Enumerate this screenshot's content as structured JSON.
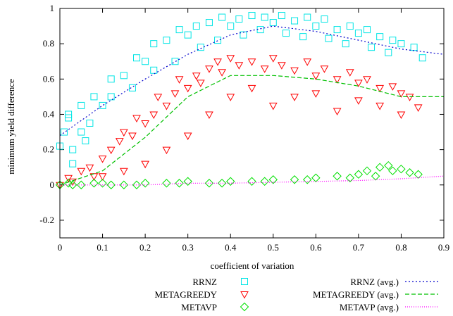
{
  "chart_data": {
    "type": "scatter",
    "title": "",
    "xlabel": "coefficient of variation",
    "ylabel": "minimum yield difference",
    "xlim": [
      0,
      0.9
    ],
    "ylim": [
      -0.3,
      1.0
    ],
    "x_ticks": [
      0,
      0.1,
      0.2,
      0.3,
      0.4,
      0.5,
      0.6,
      0.7,
      0.8,
      0.9
    ],
    "x_tick_labels": [
      "0",
      "0.1",
      "0.2",
      "0.3",
      "0.4",
      "0.5",
      "0.6",
      "0.7",
      "0.8",
      "0.9"
    ],
    "y_ticks": [
      -0.2,
      0,
      0.2,
      0.4,
      0.6,
      0.8,
      1.0
    ],
    "y_tick_labels": [
      "-0.2",
      "0",
      "0.2",
      "0.4",
      "0.6",
      "0.8",
      "1"
    ],
    "grid": false,
    "legend_position": "bottom",
    "scatter_series": [
      {
        "name": "RRNZ",
        "marker": "square",
        "color": "#00e5e5",
        "x": [
          0,
          0.01,
          0.02,
          0.03,
          0.05,
          0.05,
          0.08,
          0.1,
          0.12,
          0.15,
          0.18,
          0.2,
          0.22,
          0.25,
          0.28,
          0.3,
          0.32,
          0.35,
          0.38,
          0.4,
          0.42,
          0.45,
          0.48,
          0.5,
          0.52,
          0.55,
          0.58,
          0.6,
          0.62,
          0.65,
          0.68,
          0.7,
          0.72,
          0.75,
          0.78,
          0.8,
          0.83,
          0.85,
          0.03,
          0.07,
          0.12,
          0.17,
          0.22,
          0.27,
          0.33,
          0.37,
          0.43,
          0.47,
          0.53,
          0.57,
          0.63,
          0.67,
          0.73,
          0.77,
          0.02,
          0.06
        ],
        "y": [
          0.22,
          0.3,
          0.38,
          0.2,
          0.45,
          0.3,
          0.5,
          0.45,
          0.6,
          0.62,
          0.72,
          0.7,
          0.8,
          0.82,
          0.88,
          0.85,
          0.9,
          0.92,
          0.95,
          0.9,
          0.94,
          0.96,
          0.95,
          0.92,
          0.96,
          0.93,
          0.95,
          0.9,
          0.94,
          0.88,
          0.9,
          0.86,
          0.88,
          0.84,
          0.82,
          0.8,
          0.78,
          0.72,
          0.12,
          0.35,
          0.5,
          0.55,
          0.65,
          0.7,
          0.78,
          0.82,
          0.85,
          0.88,
          0.86,
          0.84,
          0.83,
          0.8,
          0.78,
          0.75,
          0.4,
          0.25
        ]
      },
      {
        "name": "METAGREEDY",
        "marker": "triangle-down",
        "color": "#ff0000",
        "x": [
          0,
          0.02,
          0.03,
          0.05,
          0.07,
          0.08,
          0.1,
          0.12,
          0.14,
          0.15,
          0.17,
          0.18,
          0.2,
          0.22,
          0.23,
          0.25,
          0.27,
          0.28,
          0.3,
          0.32,
          0.33,
          0.35,
          0.37,
          0.38,
          0.4,
          0.42,
          0.45,
          0.48,
          0.5,
          0.52,
          0.55,
          0.58,
          0.6,
          0.62,
          0.65,
          0.68,
          0.7,
          0.72,
          0.75,
          0.78,
          0.8,
          0.82,
          0.84,
          0.25,
          0.3,
          0.35,
          0.4,
          0.45,
          0.5,
          0.55,
          0.6,
          0.65,
          0.7,
          0.75,
          0.8,
          0.2,
          0.15,
          0.1
        ],
        "y": [
          0.0,
          0.04,
          0.02,
          0.08,
          0.1,
          0.05,
          0.15,
          0.2,
          0.25,
          0.3,
          0.28,
          0.38,
          0.35,
          0.4,
          0.5,
          0.45,
          0.52,
          0.6,
          0.55,
          0.62,
          0.58,
          0.66,
          0.7,
          0.64,
          0.72,
          0.68,
          0.7,
          0.66,
          0.72,
          0.68,
          0.65,
          0.7,
          0.62,
          0.66,
          0.6,
          0.64,
          0.58,
          0.6,
          0.55,
          0.56,
          0.52,
          0.5,
          0.44,
          0.2,
          0.28,
          0.4,
          0.5,
          0.55,
          0.45,
          0.5,
          0.52,
          0.42,
          0.48,
          0.45,
          0.4,
          0.12,
          0.08,
          0.05
        ]
      },
      {
        "name": "METAVP",
        "marker": "diamond",
        "color": "#00e000",
        "x": [
          0,
          0.02,
          0.05,
          0.08,
          0.1,
          0.15,
          0.2,
          0.25,
          0.3,
          0.35,
          0.4,
          0.45,
          0.5,
          0.55,
          0.6,
          0.65,
          0.7,
          0.72,
          0.75,
          0.77,
          0.78,
          0.8,
          0.82,
          0.84,
          0.03,
          0.12,
          0.18,
          0.28,
          0.38,
          0.48,
          0.58,
          0.68,
          0.74
        ],
        "y": [
          0.0,
          0.01,
          0.0,
          0.01,
          0.01,
          0.0,
          0.01,
          0.01,
          0.02,
          0.01,
          0.02,
          0.02,
          0.03,
          0.03,
          0.04,
          0.05,
          0.06,
          0.08,
          0.1,
          0.11,
          0.08,
          0.09,
          0.07,
          0.06,
          0.0,
          0.0,
          0.0,
          0.01,
          0.01,
          0.02,
          0.03,
          0.04,
          0.05
        ]
      }
    ],
    "line_series": [
      {
        "name": "RRNZ (avg.)",
        "color": "#0000cc",
        "dash": "2,3",
        "x": [
          0,
          0.1,
          0.2,
          0.3,
          0.4,
          0.5,
          0.6,
          0.7,
          0.8,
          0.9
        ],
        "y": [
          0.28,
          0.45,
          0.6,
          0.74,
          0.85,
          0.9,
          0.87,
          0.82,
          0.77,
          0.74
        ]
      },
      {
        "name": "METAGREEDY (avg.)",
        "color": "#00c000",
        "dash": "6,3",
        "x": [
          0,
          0.1,
          0.2,
          0.3,
          0.4,
          0.5,
          0.6,
          0.7,
          0.8,
          0.9
        ],
        "y": [
          0.0,
          0.08,
          0.27,
          0.5,
          0.62,
          0.62,
          0.6,
          0.56,
          0.5,
          0.5
        ]
      },
      {
        "name": "METAVP (avg.)",
        "color": "#ff00ff",
        "dash": "1,2",
        "x": [
          0,
          0.1,
          0.2,
          0.3,
          0.4,
          0.5,
          0.6,
          0.7,
          0.8,
          0.9
        ],
        "y": [
          0.0,
          0.0,
          0.0,
          0.01,
          0.01,
          0.015,
          0.02,
          0.025,
          0.035,
          0.05
        ]
      }
    ],
    "legend": {
      "left_labels": [
        "RRNZ",
        "METAGREEDY",
        "METAVP"
      ],
      "right_labels": [
        "RRNZ (avg.)",
        "METAGREEDY (avg.)",
        "METAVP (avg.)"
      ]
    }
  }
}
